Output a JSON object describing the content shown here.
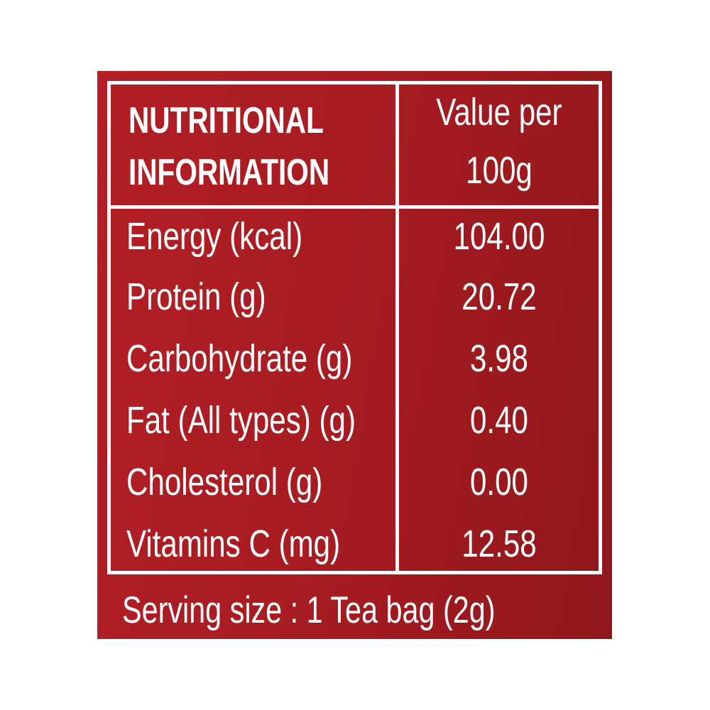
{
  "header": {
    "title_line1": "NUTRITIONAL",
    "title_line2": "INFORMATION",
    "value_line1": "Value per",
    "value_line2": "100g"
  },
  "rows": [
    {
      "label": "Energy (kcal)",
      "value": "104.00"
    },
    {
      "label": "Protein (g)",
      "value": "20.72"
    },
    {
      "label": "Carbohydrate (g)",
      "value": "3.98"
    },
    {
      "label": "Fat (All types) (g)",
      "value": "0.40"
    },
    {
      "label": "Cholesterol (g)",
      "value": "0.00"
    },
    {
      "label": "Vitamins C (mg)",
      "value": "12.58"
    }
  ],
  "footer": {
    "serving_size": "Serving size : 1 Tea bag (2g)"
  },
  "colors": {
    "background": "#a81c22",
    "text": "#ffffff"
  }
}
